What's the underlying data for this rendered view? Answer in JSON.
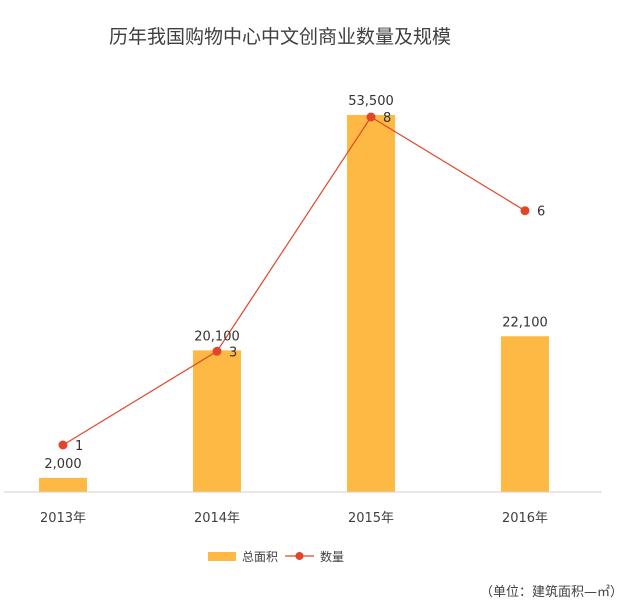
{
  "chart_data": {
    "type": "bar",
    "title": "历年我国购物中心中文创商业数量及规模",
    "categories": [
      "2013年",
      "2014年",
      "2015年",
      "2016年"
    ],
    "series": [
      {
        "name": "总面积",
        "type": "bar",
        "values": [
          2000,
          20100,
          53500,
          22100
        ],
        "labels": [
          "2,000",
          "20,100",
          "53,500",
          "22,100"
        ],
        "color": "#FDB944"
      },
      {
        "name": "数量",
        "type": "line",
        "values": [
          1,
          3,
          8,
          6
        ],
        "labels": [
          "1",
          "3",
          "8",
          "6"
        ],
        "color": "#E2462A"
      }
    ],
    "unit_note": "（单位：建筑面积—㎡）",
    "legend_position": "bottom",
    "grid": false
  }
}
